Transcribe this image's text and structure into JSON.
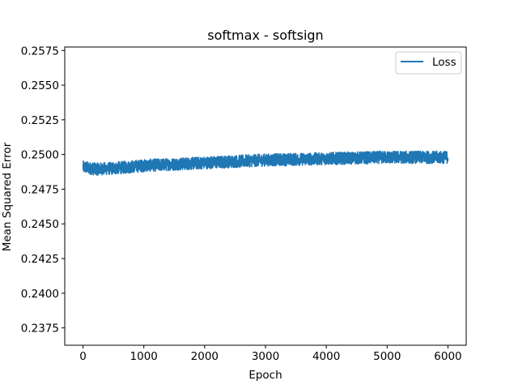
{
  "chart_data": {
    "type": "line",
    "title": "softmax - softsign",
    "xlabel": "Epoch",
    "ylabel": "Mean Squared Error",
    "xlim": [
      -300,
      6300
    ],
    "ylim": [
      0.23625,
      0.25775
    ],
    "xticks": [
      0,
      1000,
      2000,
      3000,
      4000,
      5000,
      6000
    ],
    "xtick_labels": [
      "0",
      "1000",
      "2000",
      "3000",
      "4000",
      "5000",
      "6000"
    ],
    "yticks": [
      0.2375,
      0.24,
      0.2425,
      0.245,
      0.2475,
      0.25,
      0.2525,
      0.255,
      0.2575
    ],
    "ytick_labels": [
      "0.2375",
      "0.2400",
      "0.2425",
      "0.2450",
      "0.2475",
      "0.2500",
      "0.2525",
      "0.2550",
      "0.2575"
    ],
    "grid": false,
    "legend": {
      "placement": "top-right",
      "entries": [
        "Loss"
      ]
    },
    "series": [
      {
        "name": "Loss",
        "color": "#1f77b4",
        "x_start": 0,
        "x_end": 6000,
        "noise_band": 0.00045,
        "trend": [
          [
            0,
            0.2491
          ],
          [
            200,
            0.24895
          ],
          [
            500,
            0.249
          ],
          [
            1000,
            0.2492
          ],
          [
            1500,
            0.2493
          ],
          [
            2000,
            0.2494
          ],
          [
            2500,
            0.2495
          ],
          [
            3000,
            0.2496
          ],
          [
            3500,
            0.24965
          ],
          [
            4000,
            0.2497
          ],
          [
            4500,
            0.24975
          ],
          [
            5000,
            0.2498
          ],
          [
            5500,
            0.2498
          ],
          [
            6000,
            0.2498
          ]
        ]
      }
    ]
  }
}
